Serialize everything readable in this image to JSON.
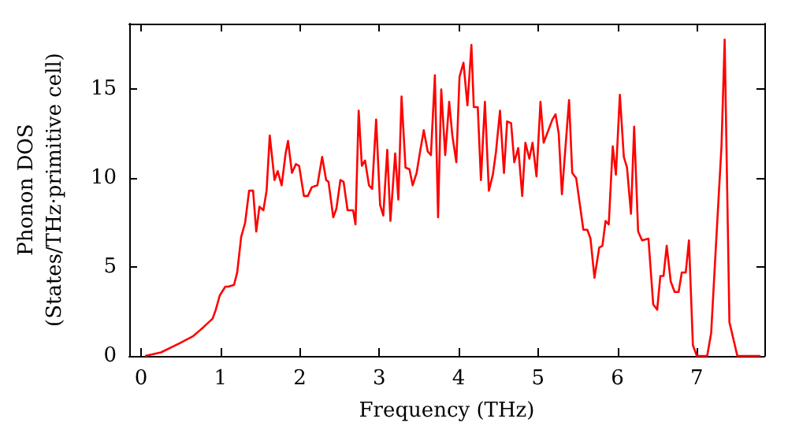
{
  "chart_data": {
    "type": "line",
    "xlabel": "Frequency (THz)",
    "ylabel": "Phonon DOS\n(States/THz·primitive cell)",
    "xlim": [
      -0.15,
      7.85
    ],
    "ylim": [
      0,
      18.7
    ],
    "xticks": [
      0,
      1,
      2,
      3,
      4,
      5,
      6,
      7
    ],
    "yticks": [
      0,
      5,
      10,
      15
    ],
    "marker": "none",
    "line_style": "solid",
    "series": [
      {
        "color": "#ff0000",
        "x": [
          0.05,
          0.25,
          0.48,
          0.65,
          0.78,
          0.9,
          0.94,
          0.99,
          1.06,
          1.1,
          1.17,
          1.21,
          1.26,
          1.31,
          1.36,
          1.41,
          1.45,
          1.49,
          1.54,
          1.58,
          1.62,
          1.68,
          1.72,
          1.77,
          1.82,
          1.85,
          1.9,
          1.95,
          1.99,
          2.05,
          2.1,
          2.15,
          2.22,
          2.28,
          2.33,
          2.36,
          2.42,
          2.46,
          2.51,
          2.55,
          2.6,
          2.67,
          2.7,
          2.74,
          2.78,
          2.82,
          2.87,
          2.91,
          2.96,
          3.01,
          3.05,
          3.1,
          3.14,
          3.2,
          3.24,
          3.28,
          3.33,
          3.38,
          3.42,
          3.47,
          3.51,
          3.56,
          3.61,
          3.65,
          3.7,
          3.74,
          3.78,
          3.83,
          3.88,
          3.92,
          3.97,
          4.01,
          4.06,
          4.11,
          4.16,
          4.19,
          4.24,
          4.28,
          4.33,
          4.38,
          4.43,
          4.47,
          4.52,
          4.57,
          4.61,
          4.66,
          4.7,
          4.75,
          4.8,
          4.84,
          4.89,
          4.93,
          4.98,
          5.03,
          5.07,
          5.18,
          5.22,
          5.26,
          5.3,
          5.39,
          5.43,
          5.48,
          5.57,
          5.62,
          5.66,
          5.71,
          5.77,
          5.81,
          5.85,
          5.89,
          5.94,
          5.98,
          6.03,
          6.08,
          6.12,
          6.17,
          6.21,
          6.26,
          6.31,
          6.39,
          6.45,
          6.5,
          6.54,
          6.58,
          6.62,
          6.67,
          6.72,
          6.77,
          6.81,
          6.86,
          6.9,
          6.95,
          7.0,
          7.13,
          7.18,
          7.24,
          7.31,
          7.35,
          7.41,
          7.51,
          7.8
        ],
        "values": [
          0,
          0.2,
          0.7,
          1.1,
          1.6,
          2.1,
          2.6,
          3.4,
          3.9,
          3.9,
          4.0,
          4.7,
          6.7,
          7.5,
          9.3,
          9.3,
          7.0,
          8.4,
          8.2,
          9.3,
          12.4,
          9.9,
          10.4,
          9.6,
          11.4,
          12.1,
          10.3,
          10.8,
          10.7,
          9.0,
          9.0,
          9.5,
          9.6,
          11.2,
          9.9,
          9.8,
          7.8,
          8.3,
          9.9,
          9.8,
          8.2,
          8.2,
          7.4,
          13.8,
          10.7,
          11.0,
          9.6,
          9.4,
          13.3,
          8.5,
          7.9,
          11.6,
          7.6,
          11.4,
          8.8,
          14.6,
          10.6,
          10.5,
          9.6,
          10.3,
          11.4,
          12.7,
          11.5,
          11.3,
          15.8,
          7.8,
          15.0,
          11.3,
          14.3,
          12.4,
          10.9,
          15.7,
          16.5,
          14.1,
          17.5,
          14.0,
          14.0,
          9.9,
          14.3,
          9.3,
          10.2,
          11.5,
          13.8,
          10.3,
          13.2,
          13.1,
          10.9,
          11.7,
          9.0,
          12.0,
          11.1,
          12.0,
          10.1,
          14.3,
          12.0,
          13.3,
          13.6,
          12.5,
          9.1,
          14.4,
          10.3,
          10.0,
          7.1,
          7.1,
          6.6,
          4.4,
          6.1,
          6.2,
          7.6,
          7.4,
          11.8,
          10.2,
          14.7,
          11.2,
          10.6,
          8.0,
          12.9,
          7.0,
          6.5,
          6.6,
          2.9,
          2.6,
          4.5,
          4.5,
          6.2,
          4.2,
          3.6,
          3.6,
          4.7,
          4.7,
          6.5,
          0.6,
          0,
          0,
          1.3,
          6.2,
          11.8,
          17.8,
          1.9,
          0,
          0
        ]
      }
    ]
  }
}
